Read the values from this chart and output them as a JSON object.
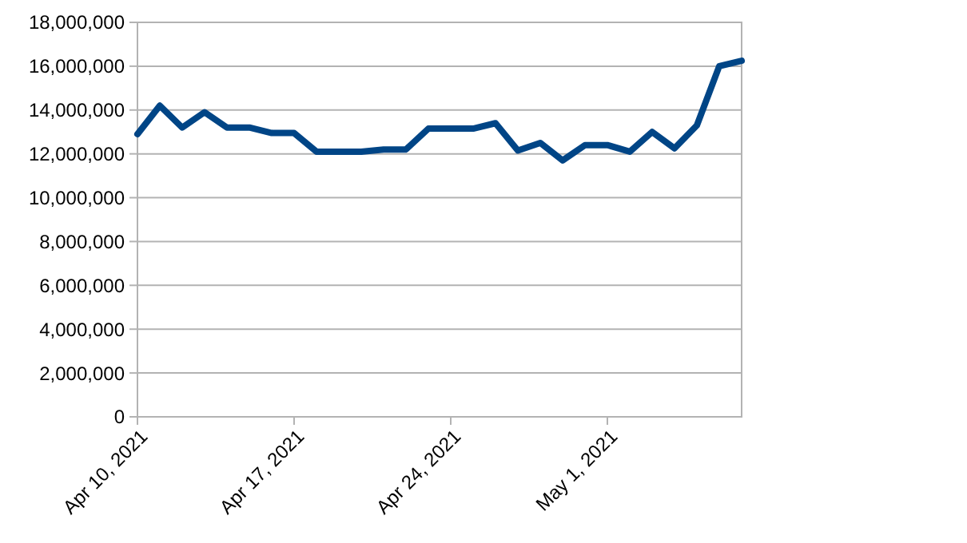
{
  "chart_data": {
    "type": "line",
    "x": [
      "2021-04-10",
      "2021-04-11",
      "2021-04-12",
      "2021-04-13",
      "2021-04-14",
      "2021-04-15",
      "2021-04-16",
      "2021-04-17",
      "2021-04-18",
      "2021-04-19",
      "2021-04-20",
      "2021-04-21",
      "2021-04-22",
      "2021-04-23",
      "2021-04-24",
      "2021-04-25",
      "2021-04-26",
      "2021-04-27",
      "2021-04-28",
      "2021-04-29",
      "2021-04-30",
      "2021-05-01",
      "2021-05-02",
      "2021-05-03",
      "2021-05-04",
      "2021-05-05",
      "2021-05-06",
      "2021-05-07"
    ],
    "series": [
      {
        "color": "#004586",
        "values": [
          12900000,
          14200000,
          13200000,
          13900000,
          13200000,
          13200000,
          12950000,
          12950000,
          12100000,
          12100000,
          12100000,
          12200000,
          12200000,
          13150000,
          13150000,
          13150000,
          13400000,
          12150000,
          12500000,
          11700000,
          12400000,
          12400000,
          12100000,
          13000000,
          12250000,
          13300000,
          16000000,
          16250000
        ]
      }
    ],
    "xlim": [
      "2021-04-10",
      "2021-05-07"
    ],
    "xticks": [
      {
        "value": "2021-04-10",
        "label": "Apr 10, 2021"
      },
      {
        "value": "2021-04-17",
        "label": "Apr 17, 2021"
      },
      {
        "value": "2021-04-24",
        "label": "Apr 24, 2021"
      },
      {
        "value": "2021-05-01",
        "label": "May 1, 2021"
      }
    ],
    "ylim": [
      0,
      18000000
    ],
    "yticks": [
      {
        "value": 0,
        "label": "0"
      },
      {
        "value": 2000000,
        "label": "2,000,000"
      },
      {
        "value": 4000000,
        "label": "4,000,000"
      },
      {
        "value": 6000000,
        "label": "6,000,000"
      },
      {
        "value": 8000000,
        "label": "8,000,000"
      },
      {
        "value": 10000000,
        "label": "10,000,000"
      },
      {
        "value": 12000000,
        "label": "12,000,000"
      },
      {
        "value": 14000000,
        "label": "14,000,000"
      },
      {
        "value": 16000000,
        "label": "16,000,000"
      },
      {
        "value": 18000000,
        "label": "18,000,000"
      }
    ],
    "grid": "y",
    "line_style": "solid"
  }
}
